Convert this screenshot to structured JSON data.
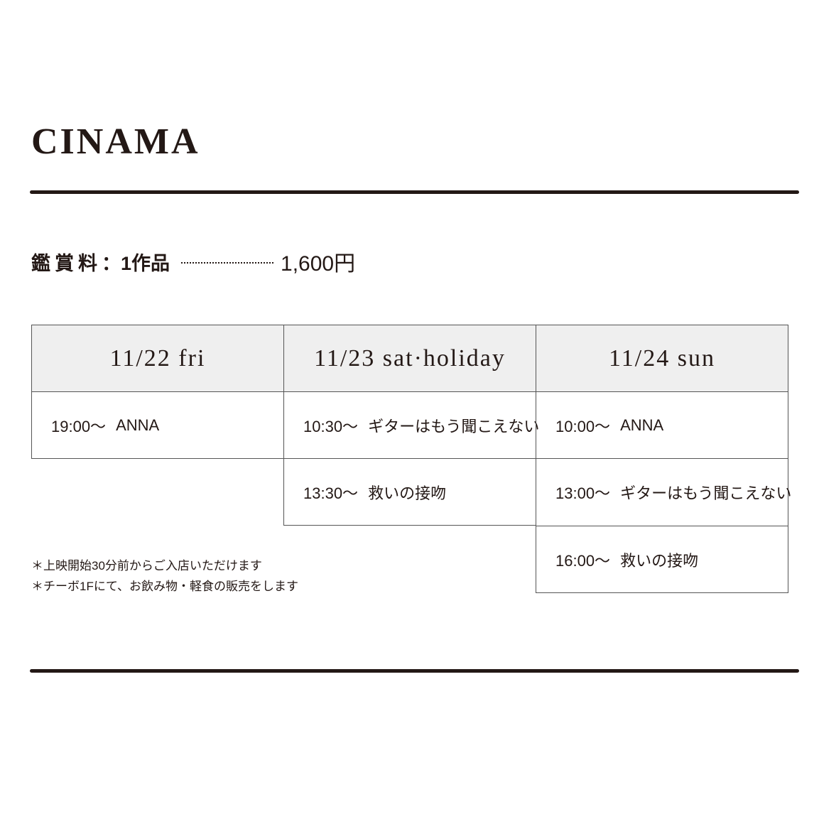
{
  "title": "CINAMA",
  "price": {
    "label": "鑑賞料",
    "separator": "：",
    "item": "1作品",
    "amount": "1,600円"
  },
  "schedule": [
    {
      "date": "11/22 fri",
      "shows": [
        {
          "time": "19:00～",
          "film": "ANNA"
        }
      ]
    },
    {
      "date": "11/23 sat·holiday",
      "shows": [
        {
          "time": "10:30～",
          "film": "ギターはもう聞こえない"
        },
        {
          "time": "13:30～",
          "film": "救いの接吻"
        }
      ]
    },
    {
      "date": "11/24 sun",
      "shows": [
        {
          "time": "10:00～",
          "film": "ANNA"
        },
        {
          "time": "13:00～",
          "film": "ギターはもう聞こえない"
        },
        {
          "time": "16:00～",
          "film": "救いの接吻"
        }
      ]
    }
  ],
  "notes": [
    "＊上映開始30分前からご入店いただけます",
    "＊チーボ1Fにて、お飲み物・軽食の販売をします"
  ]
}
